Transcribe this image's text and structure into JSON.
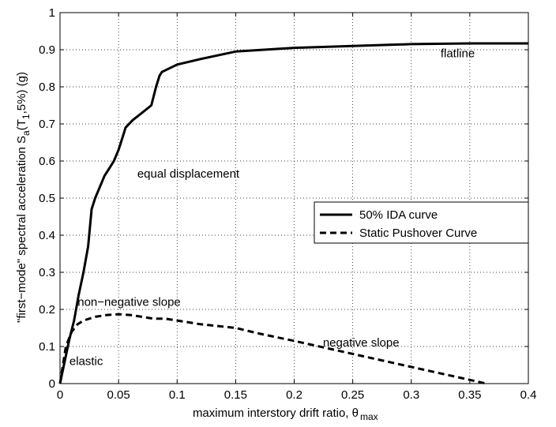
{
  "chart_data": {
    "type": "line",
    "xlabel": "maximum interstory drift ratio, θ",
    "xlabel_sub": "max",
    "ylabel_pre": "\"first−mode\" spectral acceleration S",
    "ylabel_sub_a": "a",
    "ylabel_mid": "(T",
    "ylabel_sub_1": "1",
    "ylabel_post": ",5%) (g)",
    "xlim": [
      0,
      0.4
    ],
    "ylim": [
      0,
      1
    ],
    "x_ticks": [
      0,
      0.05,
      0.1,
      0.15,
      0.2,
      0.25,
      0.3,
      0.35,
      0.4
    ],
    "x_tick_labels": [
      "0",
      "0.05",
      "0.1",
      "0.15",
      "0.2",
      "0.25",
      "0.3",
      "0.35",
      "0.4"
    ],
    "y_ticks": [
      0,
      0.1,
      0.2,
      0.3,
      0.4,
      0.5,
      0.6,
      0.7,
      0.8,
      0.9,
      1
    ],
    "y_tick_labels": [
      "0",
      "0.1",
      "0.2",
      "0.3",
      "0.4",
      "0.5",
      "0.6",
      "0.7",
      "0.8",
      "0.9",
      "1"
    ],
    "grid": true,
    "legend_position": "center-right",
    "series": [
      {
        "name": "50% IDA curve",
        "style": "solid",
        "color": "#000000",
        "x": [
          0,
          0.004,
          0.008,
          0.012,
          0.016,
          0.02,
          0.024,
          0.0255,
          0.027,
          0.03,
          0.034,
          0.038,
          0.042,
          0.046,
          0.05,
          0.052,
          0.054,
          0.056,
          0.062,
          0.07,
          0.078,
          0.082,
          0.085,
          0.087,
          0.1,
          0.12,
          0.15,
          0.2,
          0.25,
          0.3,
          0.35,
          0.4
        ],
        "y": [
          0,
          0.06,
          0.12,
          0.17,
          0.24,
          0.3,
          0.37,
          0.42,
          0.47,
          0.5,
          0.53,
          0.56,
          0.58,
          0.6,
          0.63,
          0.65,
          0.67,
          0.69,
          0.71,
          0.73,
          0.75,
          0.8,
          0.83,
          0.84,
          0.86,
          0.875,
          0.895,
          0.905,
          0.91,
          0.915,
          0.917,
          0.917
        ]
      },
      {
        "name": "Static Pushover Curve",
        "style": "dashed",
        "color": "#000000",
        "x": [
          0,
          0.005,
          0.01,
          0.015,
          0.02,
          0.03,
          0.04,
          0.05,
          0.06,
          0.07,
          0.08,
          0.09,
          0.1,
          0.12,
          0.15,
          0.17,
          0.2,
          0.25,
          0.3,
          0.35,
          0.364
        ],
        "y": [
          0,
          0.1,
          0.14,
          0.16,
          0.17,
          0.18,
          0.185,
          0.187,
          0.185,
          0.18,
          0.175,
          0.175,
          0.17,
          0.16,
          0.15,
          0.135,
          0.115,
          0.08,
          0.045,
          0.01,
          0
        ]
      }
    ],
    "annotations": [
      {
        "text": "flatline",
        "x": 0.325,
        "y": 0.88
      },
      {
        "text": "equal displacement",
        "x": 0.066,
        "y": 0.555
      },
      {
        "text": "non−negative slope",
        "x": 0.015,
        "y": 0.21
      },
      {
        "text": "negative slope",
        "x": 0.2245,
        "y": 0.1
      },
      {
        "text": "elastic",
        "x": 0.008,
        "y": 0.05
      }
    ]
  }
}
